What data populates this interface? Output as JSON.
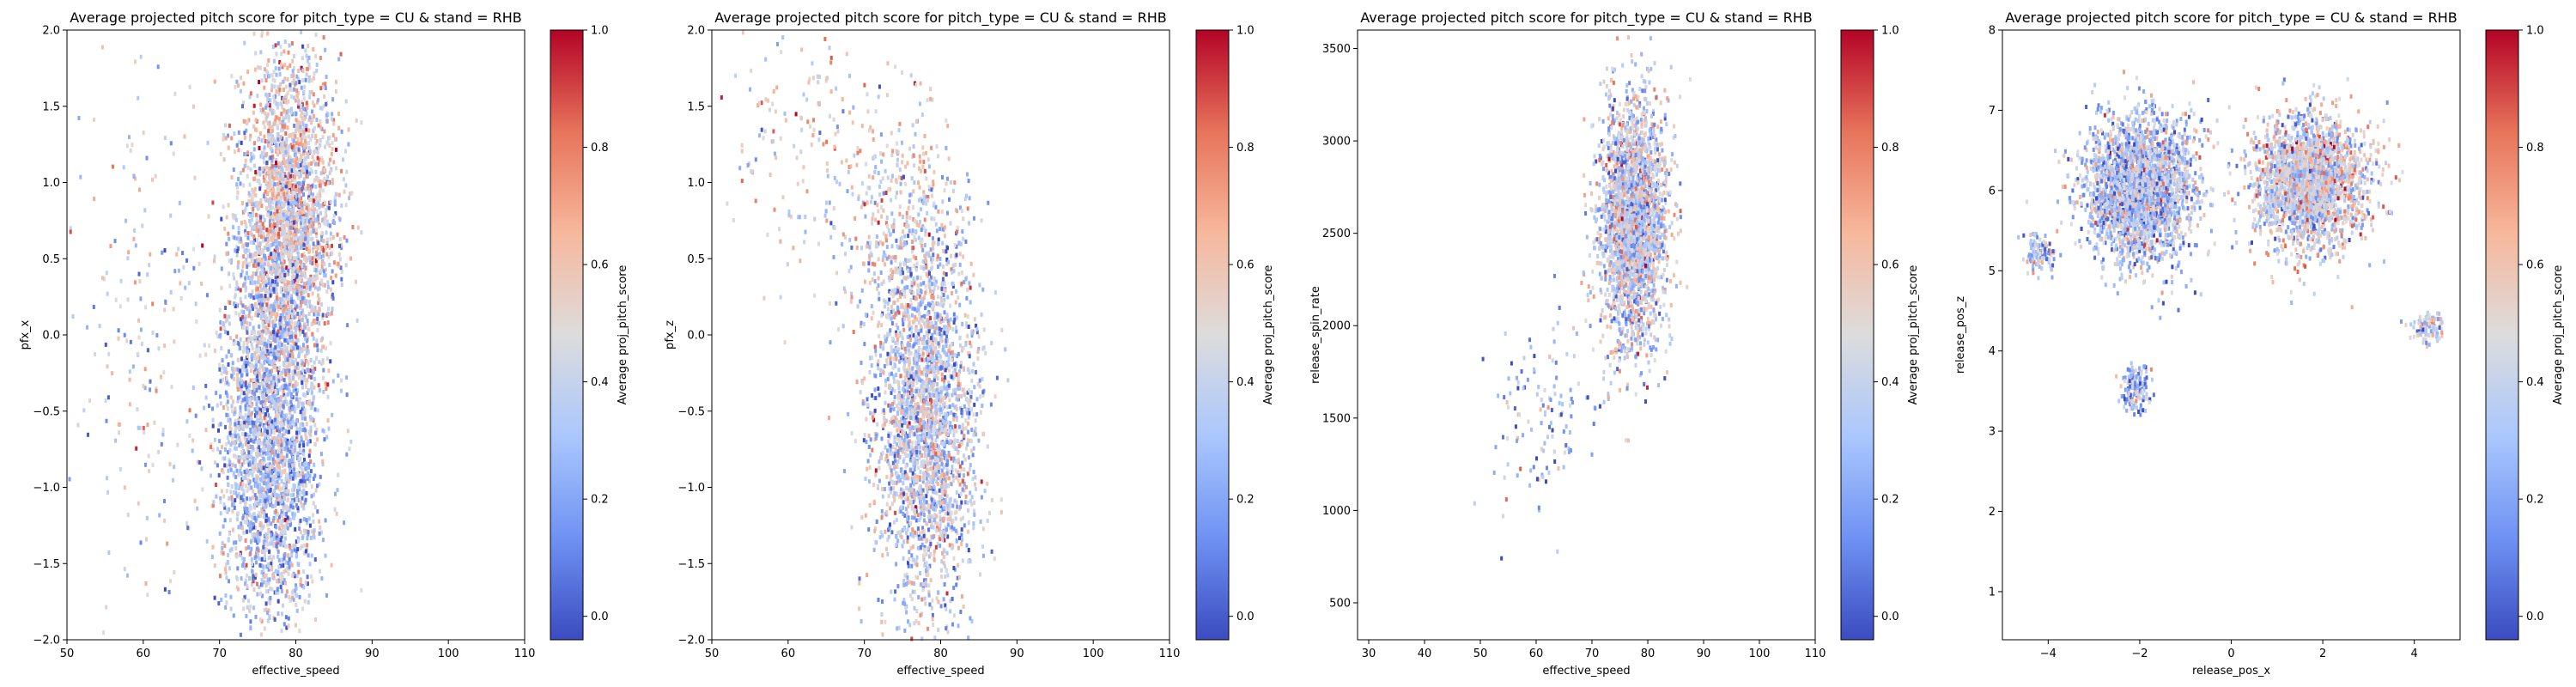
{
  "colorbar": {
    "label": "Average proj_pitch_score",
    "ticks": [
      "0.0",
      "0.2",
      "0.4",
      "0.6",
      "0.8",
      "1.0"
    ],
    "min": -0.04,
    "max": 1.0,
    "colormap": "coolwarm",
    "stops": [
      "#3b4cc0",
      "#6f92f3",
      "#aac7fd",
      "#dddcdc",
      "#f7b89c",
      "#e7745b",
      "#b40426"
    ]
  },
  "chart_data": [
    {
      "type": "heatmap",
      "title": "Average projected pitch score for pitch_type = CU & stand = RHB",
      "xlabel": "effective_speed",
      "ylabel": "pfx_x",
      "xlim": [
        50,
        110
      ],
      "ylim": [
        -2.0,
        2.0
      ],
      "xticks": [
        "50",
        "60",
        "70",
        "80",
        "90",
        "100",
        "110"
      ],
      "yticks": [
        "−2.0",
        "−1.5",
        "−1.0",
        "−0.5",
        "0.0",
        "0.5",
        "1.0",
        "1.5",
        "2.0"
      ],
      "clusters": [
        {
          "cx": 79,
          "cy": 0.75,
          "sx": 3.2,
          "sy": 0.55,
          "weight": 1.0,
          "bias": 0.08
        },
        {
          "cx": 76.5,
          "cy": -0.7,
          "sx": 3.2,
          "sy": 0.6,
          "weight": 1.0,
          "bias": -0.05
        },
        {
          "cx": 60,
          "cy": 0.0,
          "sx": 5.0,
          "sy": 0.9,
          "weight": 0.08,
          "bias": 0.0
        }
      ]
    },
    {
      "type": "heatmap",
      "title": "Average projected pitch score for pitch_type = CU & stand = RHB",
      "xlabel": "effective_speed",
      "ylabel": "pfx_z",
      "xlim": [
        50,
        110
      ],
      "ylim": [
        -2.0,
        2.0
      ],
      "xticks": [
        "50",
        "60",
        "70",
        "80",
        "90",
        "100",
        "110"
      ],
      "yticks": [
        "−2.0",
        "−1.5",
        "−1.0",
        "−0.5",
        "0.0",
        "0.5",
        "1.0",
        "1.5",
        "2.0"
      ],
      "clusters": [
        {
          "cx": 78,
          "cy": -0.55,
          "sx": 3.4,
          "sy": 0.6,
          "weight": 1.0,
          "bias": 0.0
        },
        {
          "cx": 74,
          "cy": 0.7,
          "sx": 4.5,
          "sy": 0.45,
          "weight": 0.15,
          "bias": 0.05
        },
        {
          "cx": 62,
          "cy": 1.2,
          "sx": 5.0,
          "sy": 0.5,
          "weight": 0.06,
          "bias": 0.1
        }
      ]
    },
    {
      "type": "heatmap",
      "title": "Average projected pitch score for pitch_type = CU & stand = RHB",
      "xlabel": "effective_speed",
      "ylabel": "release_spin_rate",
      "xlim": [
        28,
        110
      ],
      "ylim": [
        300,
        3600
      ],
      "xticks": [
        "30",
        "40",
        "50",
        "60",
        "70",
        "80",
        "90",
        "100",
        "110"
      ],
      "yticks": [
        "500",
        "1000",
        "1500",
        "2000",
        "2500",
        "3000",
        "3500"
      ],
      "clusters": [
        {
          "cx": 77.5,
          "cy": 2550,
          "sx": 3.0,
          "sy": 330,
          "weight": 1.0,
          "bias": 0.0
        },
        {
          "cx": 62,
          "cy": 1500,
          "sx": 5.0,
          "sy": 280,
          "weight": 0.05,
          "bias": -0.1
        }
      ]
    },
    {
      "type": "heatmap",
      "title": "Average projected pitch score for pitch_type = CU & stand = RHB",
      "xlabel": "release_pos_x",
      "ylabel": "release_pos_z",
      "xlim": [
        -5,
        5
      ],
      "ylim": [
        0.4,
        8.0
      ],
      "xticks": [
        "−4",
        "−2",
        "0",
        "2",
        "4"
      ],
      "yticks": [
        "1",
        "2",
        "3",
        "4",
        "5",
        "6",
        "7",
        "8"
      ],
      "clusters": [
        {
          "cx": -2.0,
          "cy": 6.0,
          "sx": 0.6,
          "sy": 0.45,
          "weight": 1.0,
          "bias": -0.05
        },
        {
          "cx": 1.7,
          "cy": 6.1,
          "sx": 0.6,
          "sy": 0.4,
          "weight": 0.9,
          "bias": 0.05
        },
        {
          "cx": -2.1,
          "cy": 3.5,
          "sx": 0.15,
          "sy": 0.15,
          "weight": 0.06,
          "bias": -0.1
        },
        {
          "cx": -4.2,
          "cy": 5.2,
          "sx": 0.15,
          "sy": 0.12,
          "weight": 0.04,
          "bias": -0.1
        },
        {
          "cx": 4.3,
          "cy": 4.3,
          "sx": 0.15,
          "sy": 0.1,
          "weight": 0.04,
          "bias": 0.0
        }
      ]
    }
  ]
}
